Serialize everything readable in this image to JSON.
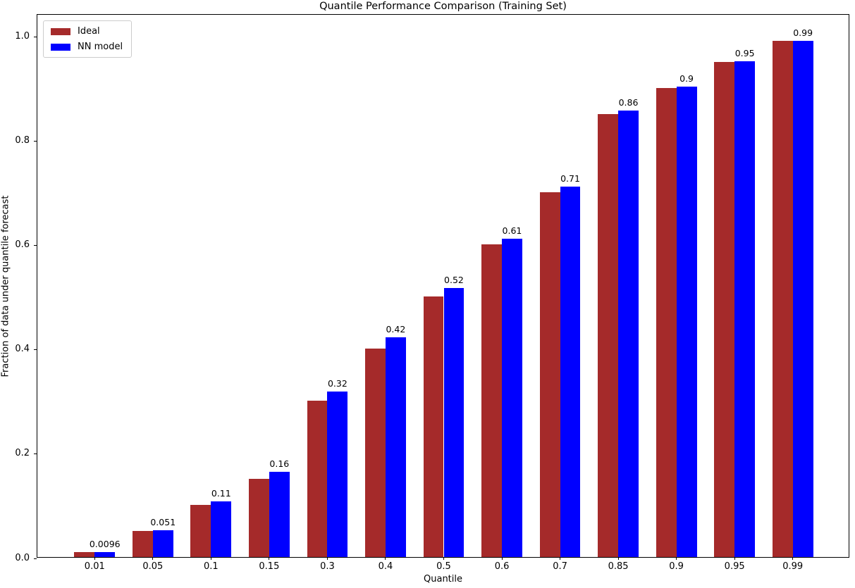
{
  "chart_data": {
    "type": "bar",
    "title": "Quantile Performance Comparison (Training Set)",
    "xlabel": "Quantile",
    "ylabel": "Fraction of data under quantile forecast",
    "categories": [
      "0.01",
      "0.05",
      "0.1",
      "0.15",
      "0.3",
      "0.4",
      "0.5",
      "0.6",
      "0.7",
      "0.85",
      "0.9",
      "0.95",
      "0.99"
    ],
    "series": [
      {
        "name": "Ideal",
        "color": "#A52A2A",
        "values": [
          0.01,
          0.05,
          0.1,
          0.15,
          0.3,
          0.4,
          0.5,
          0.6,
          0.7,
          0.85,
          0.9,
          0.95,
          0.99
        ]
      },
      {
        "name": "NN model",
        "color": "#0000FF",
        "values": [
          0.0096,
          0.051,
          0.107,
          0.163,
          0.318,
          0.422,
          0.516,
          0.611,
          0.71,
          0.857,
          0.903,
          0.951,
          0.99
        ],
        "bar_labels": [
          "0.0096",
          "0.051",
          "0.11",
          "0.16",
          "0.32",
          "0.42",
          "0.52",
          "0.61",
          "0.71",
          "0.86",
          "0.9",
          "0.95",
          "0.99"
        ]
      }
    ],
    "yticks": [
      0.0,
      0.2,
      0.4,
      0.6,
      0.8,
      1.0
    ],
    "ytick_labels": [
      "0.0",
      "0.2",
      "0.4",
      "0.6",
      "0.8",
      "1.0"
    ],
    "ylim": [
      0,
      1.043
    ],
    "legend_position": "upper left",
    "grid": false,
    "background_color": "#ffffff",
    "text_color": "#000000",
    "axis_color": "#000000"
  }
}
